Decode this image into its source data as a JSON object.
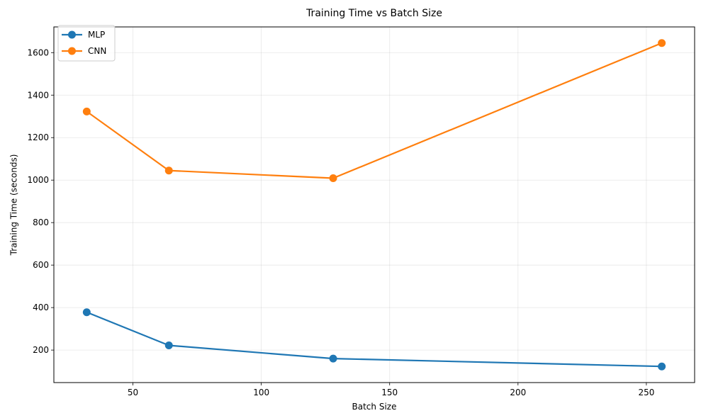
{
  "chart_data": {
    "type": "line",
    "title": "Training Time vs Batch Size",
    "xlabel": "Batch Size",
    "ylabel": "Training Time (seconds)",
    "x": [
      32,
      64,
      128,
      256
    ],
    "series": [
      {
        "name": "MLP",
        "color": "#1f77b4",
        "marker": "circle",
        "values": [
          378,
          222,
          160,
          123
        ]
      },
      {
        "name": "CNN",
        "color": "#ff7f0e",
        "marker": "circle",
        "values": [
          1323,
          1045,
          1009,
          1645
        ]
      }
    ],
    "xlim": [
      19.2,
      268.8
    ],
    "ylim": [
      47,
      1721
    ],
    "xticks": [
      50,
      100,
      150,
      200,
      250
    ],
    "yticks": [
      200,
      400,
      600,
      800,
      1000,
      1200,
      1400,
      1600
    ],
    "grid": true,
    "legend": "top-left"
  }
}
